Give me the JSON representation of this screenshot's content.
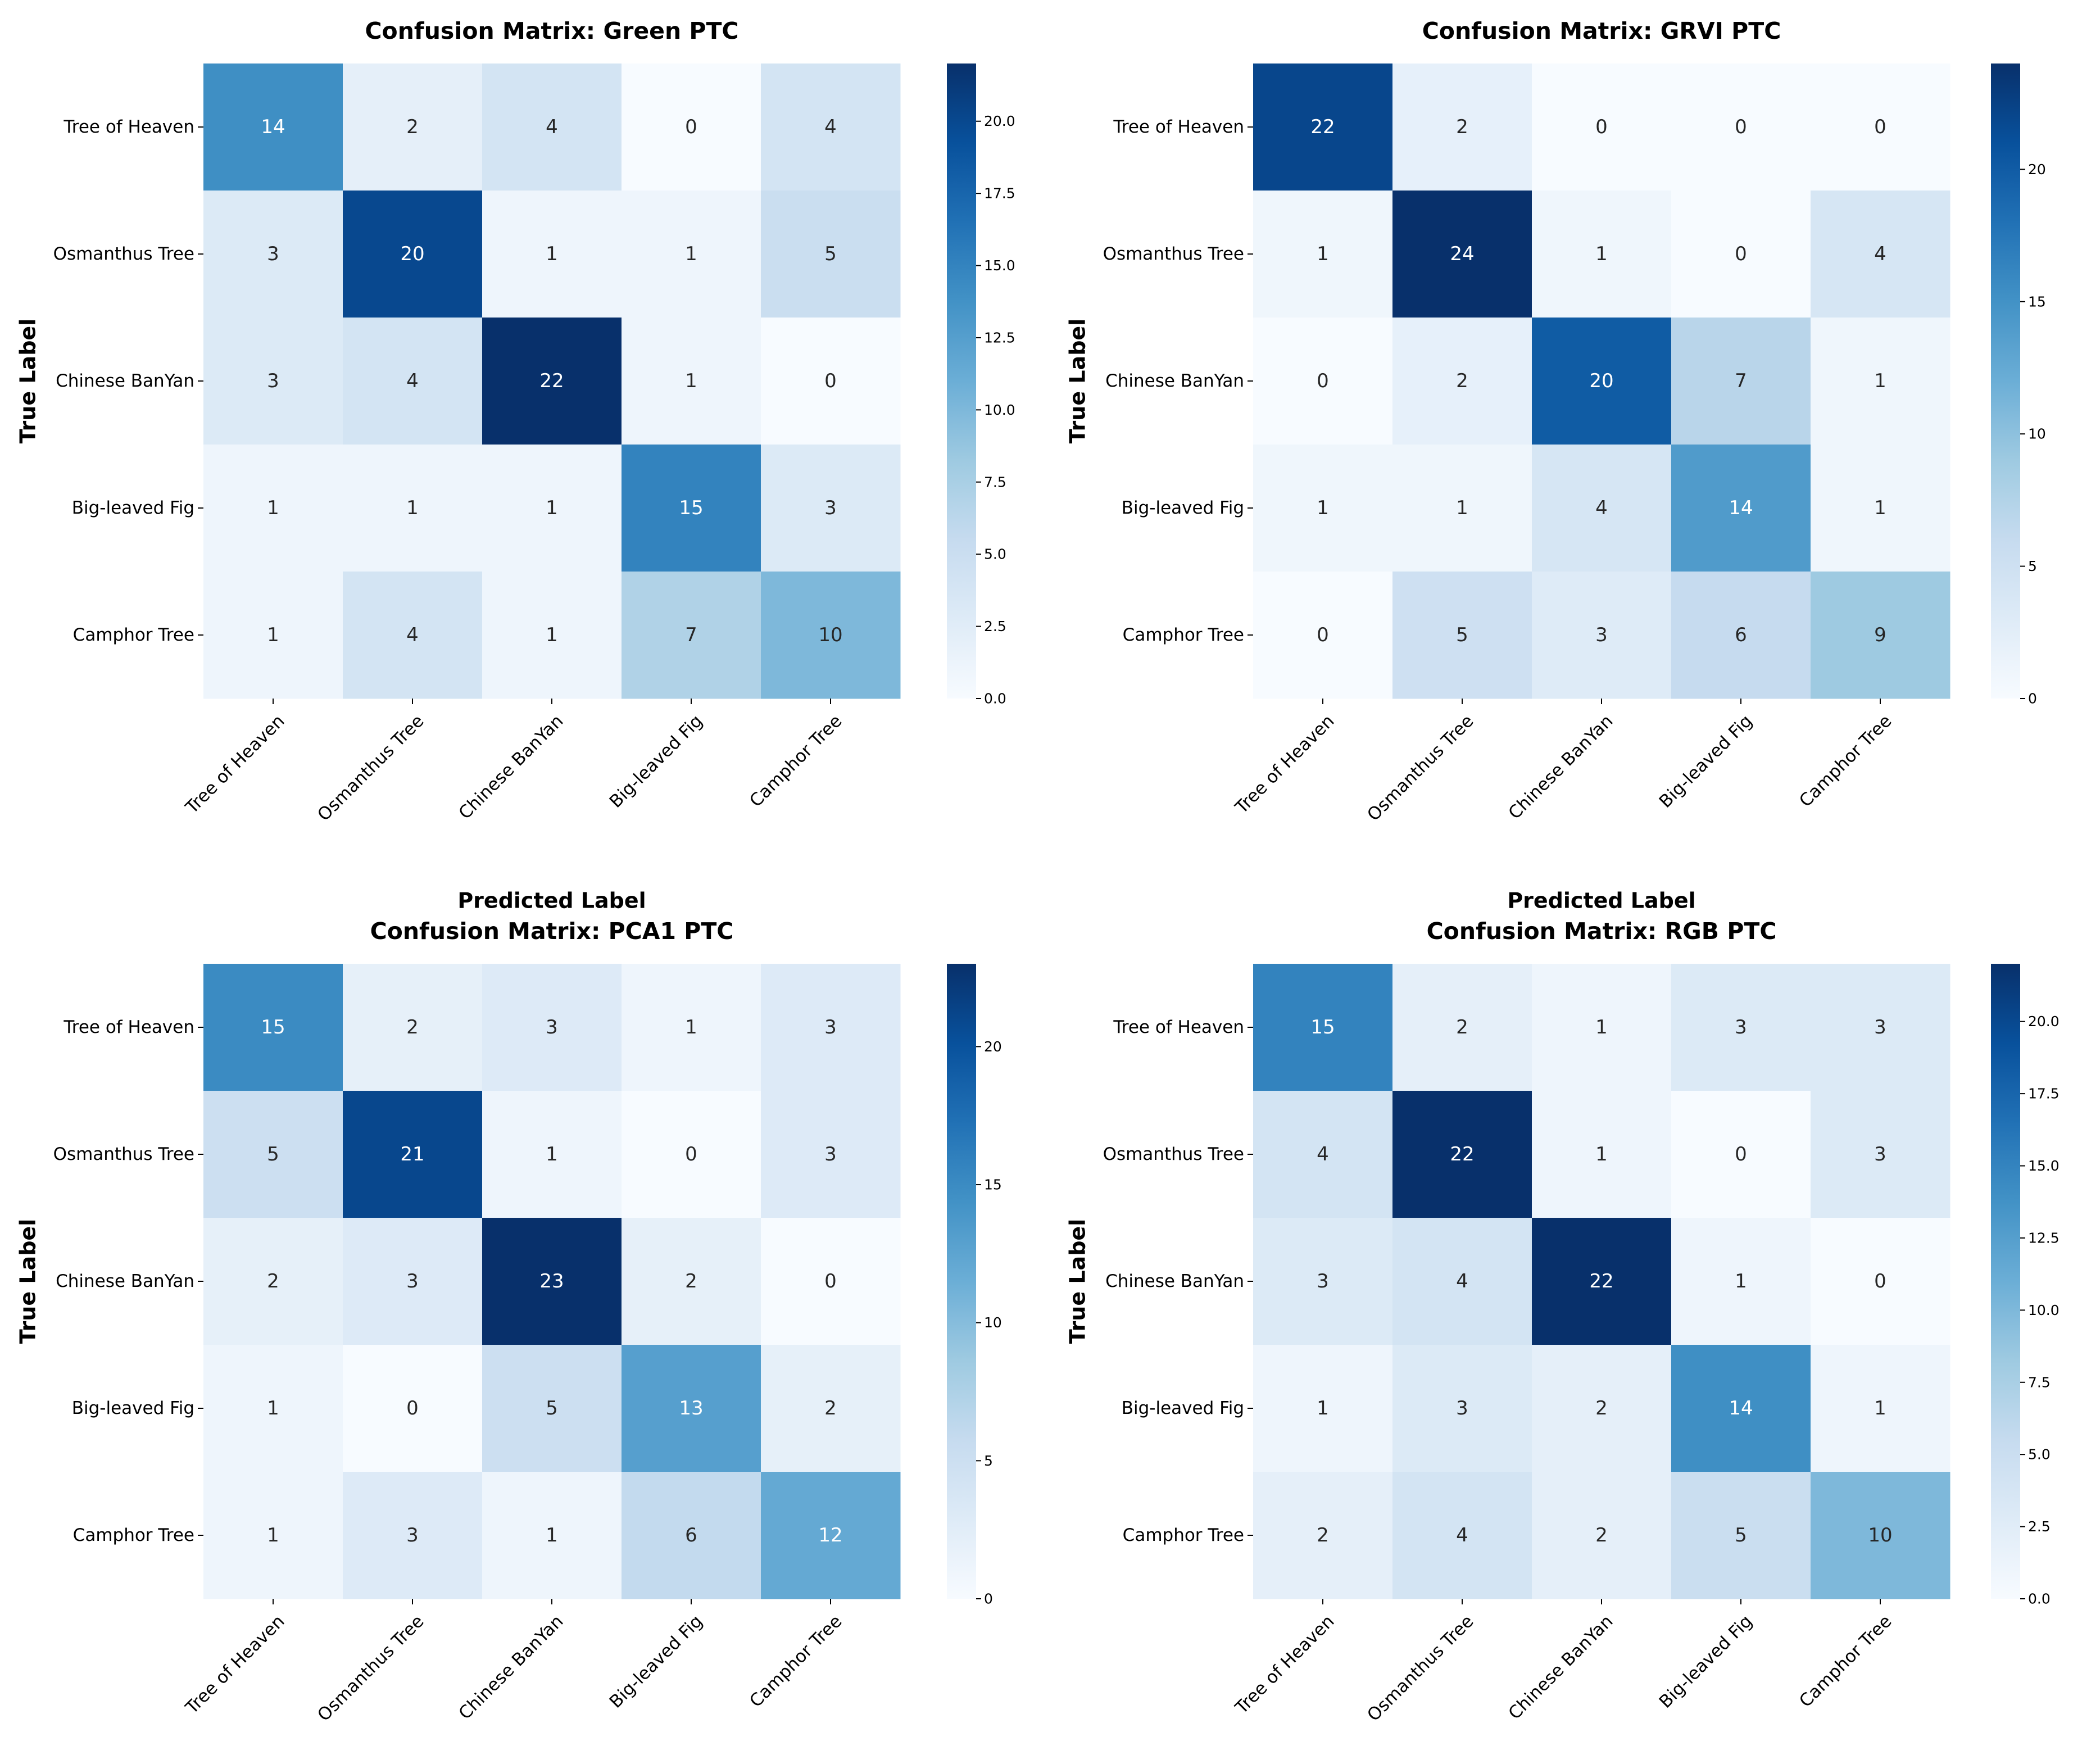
{
  "chart_data": [
    {
      "type": "heatmap",
      "title": "Confusion Matrix: Green  PTC",
      "xlabel": "Predicted Label",
      "ylabel": "True Label",
      "x_categories": [
        "Tree of Heaven",
        "Osmanthus Tree",
        "Chinese BanYan",
        "Big-leaved Fig",
        "Camphor Tree"
      ],
      "y_categories": [
        "Tree of Heaven",
        "Osmanthus Tree",
        "Chinese BanYan",
        "Big-leaved Fig",
        "Camphor Tree"
      ],
      "values": [
        [
          14,
          2,
          4,
          0,
          4
        ],
        [
          3,
          20,
          1,
          1,
          5
        ],
        [
          3,
          4,
          22,
          1,
          0
        ],
        [
          1,
          1,
          1,
          15,
          3
        ],
        [
          1,
          4,
          1,
          7,
          10
        ]
      ],
      "colorbar": {
        "vmin": 0,
        "vmax": 22,
        "ticks": [
          0,
          2.5,
          5,
          7.5,
          10,
          12.5,
          15,
          17.5,
          20
        ],
        "tick_labels": [
          "0.0",
          "2.5",
          "5.0",
          "7.5",
          "10.0",
          "12.5",
          "15.0",
          "17.5",
          "20.0"
        ]
      }
    },
    {
      "type": "heatmap",
      "title": "Confusion Matrix: GRVI  PTC",
      "xlabel": "Predicted Label",
      "ylabel": "True Label",
      "x_categories": [
        "Tree of Heaven",
        "Osmanthus Tree",
        "Chinese BanYan",
        "Big-leaved Fig",
        "Camphor Tree"
      ],
      "y_categories": [
        "Tree of Heaven",
        "Osmanthus Tree",
        "Chinese BanYan",
        "Big-leaved Fig",
        "Camphor Tree"
      ],
      "values": [
        [
          22,
          2,
          0,
          0,
          0
        ],
        [
          1,
          24,
          1,
          0,
          4
        ],
        [
          0,
          2,
          20,
          7,
          1
        ],
        [
          1,
          1,
          4,
          14,
          1
        ],
        [
          0,
          5,
          3,
          6,
          9
        ]
      ],
      "colorbar": {
        "vmin": 0,
        "vmax": 24,
        "ticks": [
          0,
          5,
          10,
          15,
          20
        ],
        "tick_labels": [
          "0",
          "5",
          "10",
          "15",
          "20"
        ]
      }
    },
    {
      "type": "heatmap",
      "title": "Confusion Matrix: PCA1  PTC",
      "xlabel": "Predicted Label",
      "ylabel": "True Label",
      "x_categories": [
        "Tree of Heaven",
        "Osmanthus Tree",
        "Chinese BanYan",
        "Big-leaved Fig",
        "Camphor Tree"
      ],
      "y_categories": [
        "Tree of Heaven",
        "Osmanthus Tree",
        "Chinese BanYan",
        "Big-leaved Fig",
        "Camphor Tree"
      ],
      "values": [
        [
          15,
          2,
          3,
          1,
          3
        ],
        [
          5,
          21,
          1,
          0,
          3
        ],
        [
          2,
          3,
          23,
          2,
          0
        ],
        [
          1,
          0,
          5,
          13,
          2
        ],
        [
          1,
          3,
          1,
          6,
          12
        ]
      ],
      "colorbar": {
        "vmin": 0,
        "vmax": 23,
        "ticks": [
          0,
          5,
          10,
          15,
          20
        ],
        "tick_labels": [
          "0",
          "5",
          "10",
          "15",
          "20"
        ]
      }
    },
    {
      "type": "heatmap",
      "title": "Confusion Matrix: RGB  PTC",
      "xlabel": "Predicted Label",
      "ylabel": "True Label",
      "x_categories": [
        "Tree of Heaven",
        "Osmanthus Tree",
        "Chinese BanYan",
        "Big-leaved Fig",
        "Camphor Tree"
      ],
      "y_categories": [
        "Tree of Heaven",
        "Osmanthus Tree",
        "Chinese BanYan",
        "Big-leaved Fig",
        "Camphor Tree"
      ],
      "values": [
        [
          15,
          2,
          1,
          3,
          3
        ],
        [
          4,
          22,
          1,
          0,
          3
        ],
        [
          3,
          4,
          22,
          1,
          0
        ],
        [
          1,
          3,
          2,
          14,
          1
        ],
        [
          2,
          4,
          2,
          5,
          10
        ]
      ],
      "colorbar": {
        "vmin": 0,
        "vmax": 22,
        "ticks": [
          0,
          2.5,
          5,
          7.5,
          10,
          12.5,
          15,
          17.5,
          20
        ],
        "tick_labels": [
          "0.0",
          "2.5",
          "5.0",
          "7.5",
          "10.0",
          "12.5",
          "15.0",
          "17.5",
          "20.0"
        ]
      }
    }
  ],
  "colors": {
    "low": "#f7fbff",
    "high": "#08306b",
    "text_dark": "#262626",
    "text_light": "#ffffff"
  }
}
